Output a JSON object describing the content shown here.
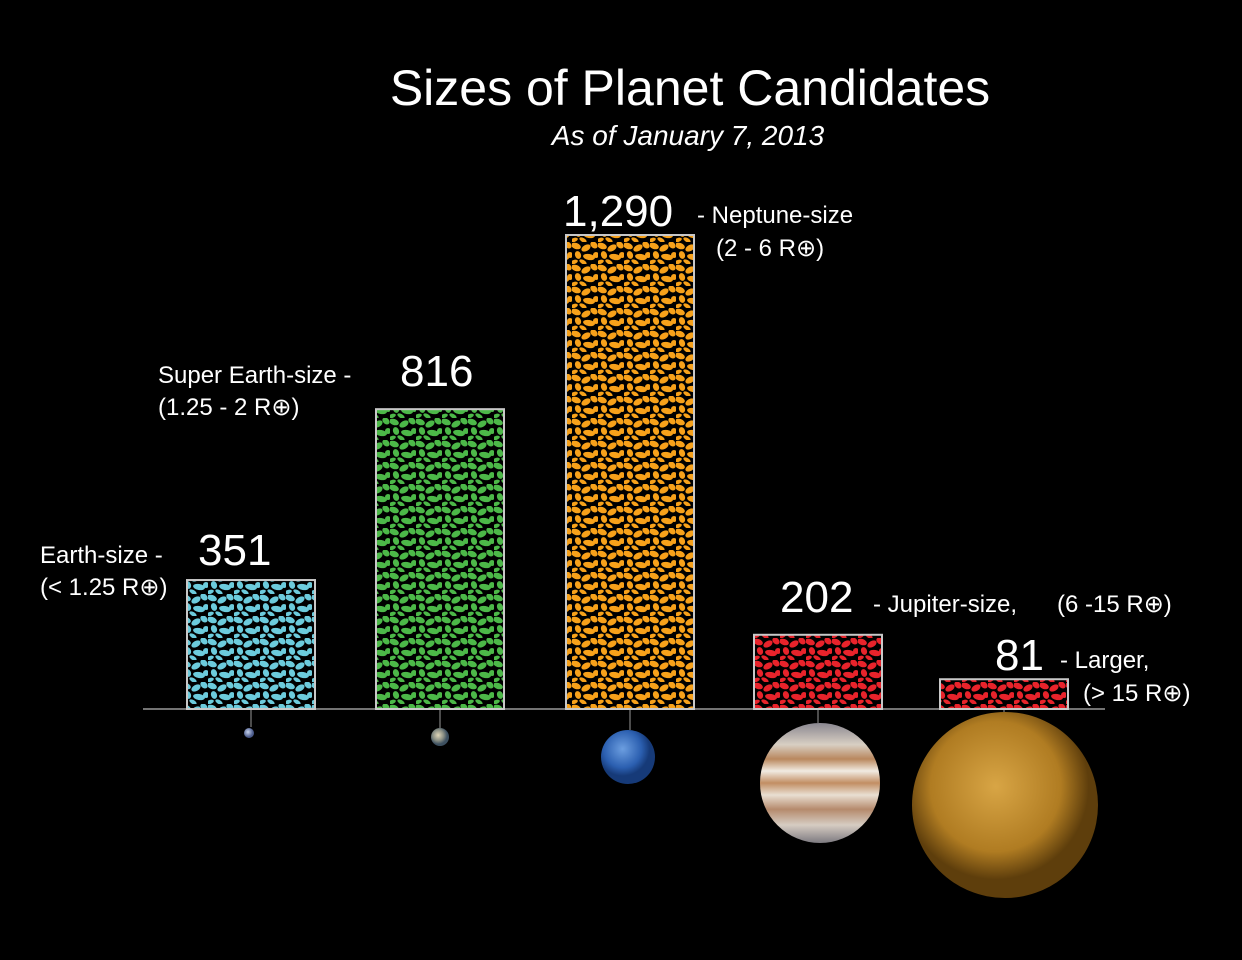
{
  "chart_data": {
    "type": "bar",
    "title": "Sizes of Planet Candidates",
    "subtitle": "As of January 7, 2013",
    "categories": [
      "Earth-size -",
      "Super Earth-size -",
      "- Neptune-size",
      "- Jupiter-size,",
      "- Larger,"
    ],
    "size_ranges": [
      "(< 1.25 R⊕)",
      "(1.25 - 2 R⊕)",
      "(2 - 6 R⊕)",
      "(6 -15 R⊕)",
      "(> 15 R⊕)"
    ],
    "values": [
      351,
      816,
      1290,
      202,
      81
    ],
    "value_labels": [
      "351",
      "816",
      "1,290",
      "202",
      "81"
    ],
    "colors": [
      "#6ccbdc",
      "#4cb848",
      "#f7a11a",
      "#e8232b",
      "#e8232b"
    ]
  }
}
